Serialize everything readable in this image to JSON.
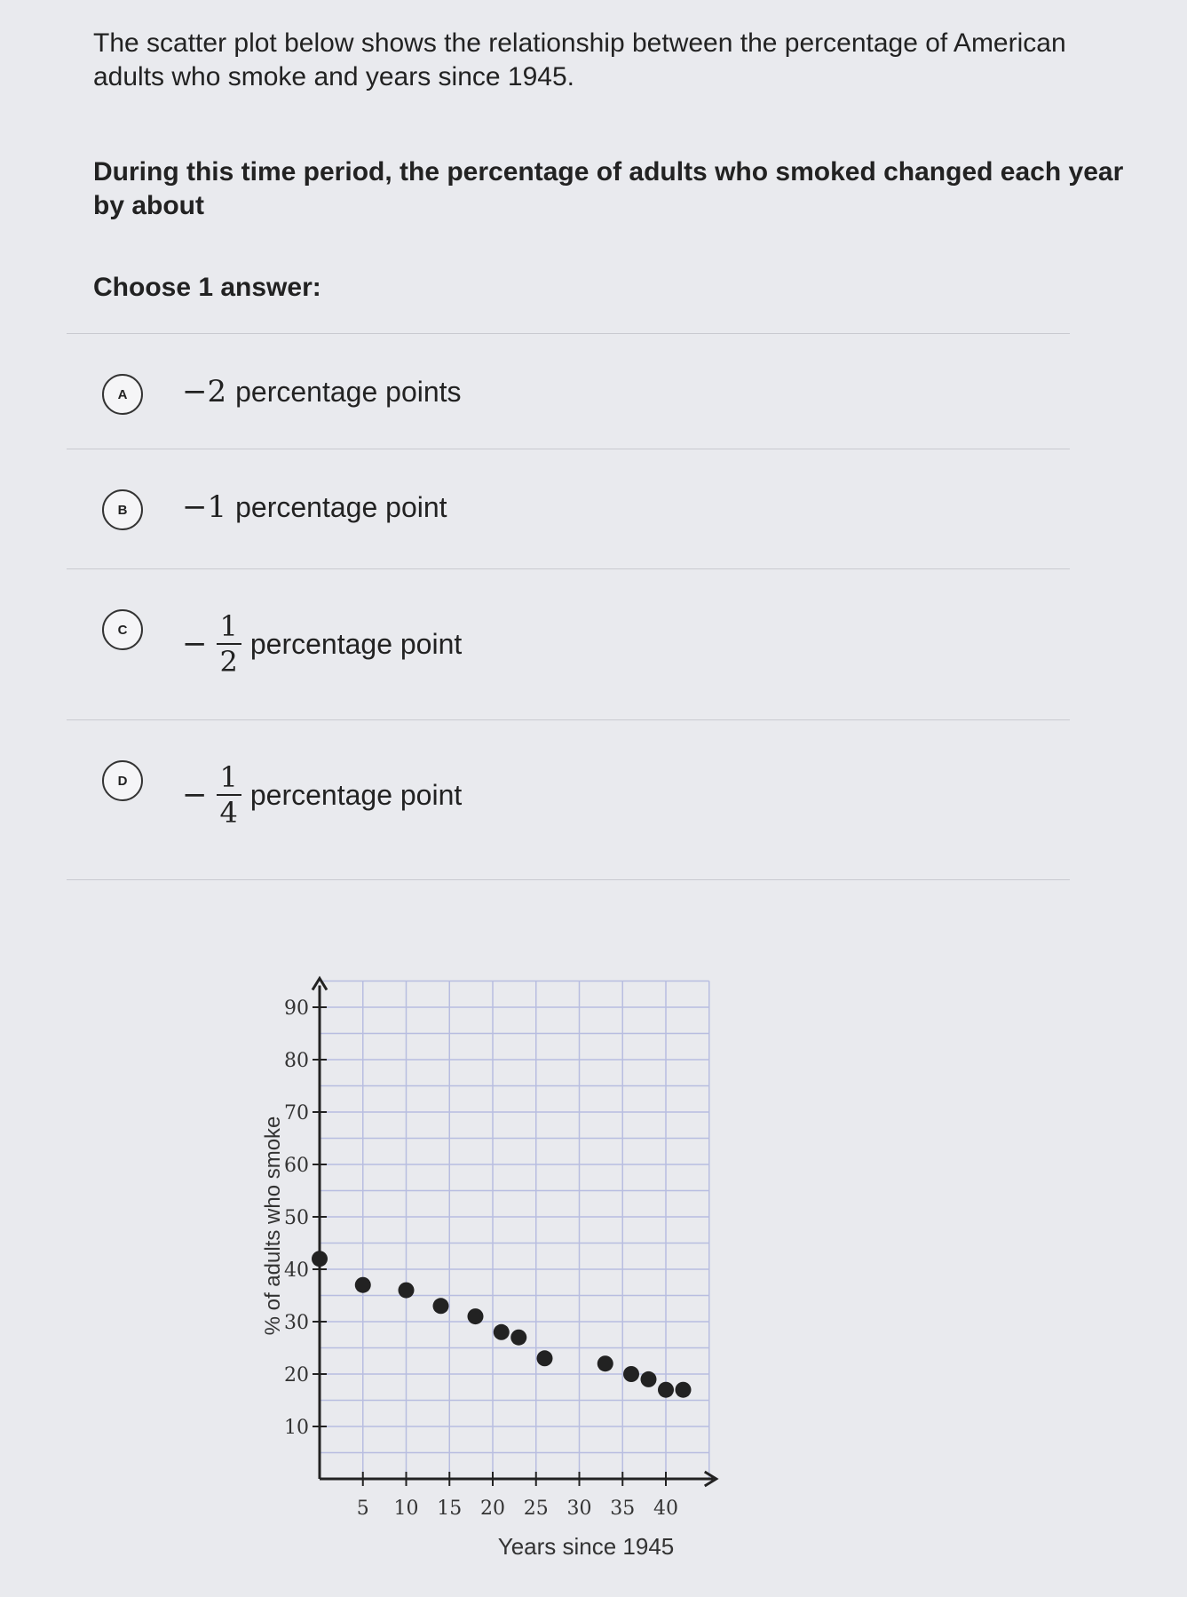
{
  "question": {
    "intro": "The scatter plot below shows the relationship between the percentage of American adults who smoke and years since 1945.",
    "prompt": "During this time period, the percentage of adults who smoked changed each year by about",
    "instruction": "Choose 1 answer:"
  },
  "choices": [
    {
      "letter": "A",
      "math": "−2",
      "text": "percentage points"
    },
    {
      "letter": "B",
      "math": "−1",
      "text": "percentage point"
    },
    {
      "letter": "C",
      "sign": "−",
      "num": "1",
      "den": "2",
      "text": "percentage point"
    },
    {
      "letter": "D",
      "sign": "−",
      "num": "1",
      "den": "4",
      "text": "percentage point"
    }
  ],
  "chart_data": {
    "type": "scatter",
    "xlabel": "Years since 1945",
    "ylabel": "% of adults who smoke",
    "xlim": [
      0,
      45
    ],
    "ylim": [
      0,
      95
    ],
    "xticks": [
      5,
      10,
      15,
      20,
      25,
      30,
      35,
      40
    ],
    "yticks": [
      10,
      20,
      30,
      40,
      50,
      60,
      70,
      80,
      90
    ],
    "grid": true,
    "points": [
      [
        0,
        42
      ],
      [
        5,
        37
      ],
      [
        10,
        36
      ],
      [
        14,
        33
      ],
      [
        18,
        31
      ],
      [
        21,
        28
      ],
      [
        23,
        27
      ],
      [
        26,
        23
      ],
      [
        33,
        22
      ],
      [
        36,
        20
      ],
      [
        38,
        19
      ],
      [
        40,
        17
      ],
      [
        42,
        17
      ]
    ]
  }
}
